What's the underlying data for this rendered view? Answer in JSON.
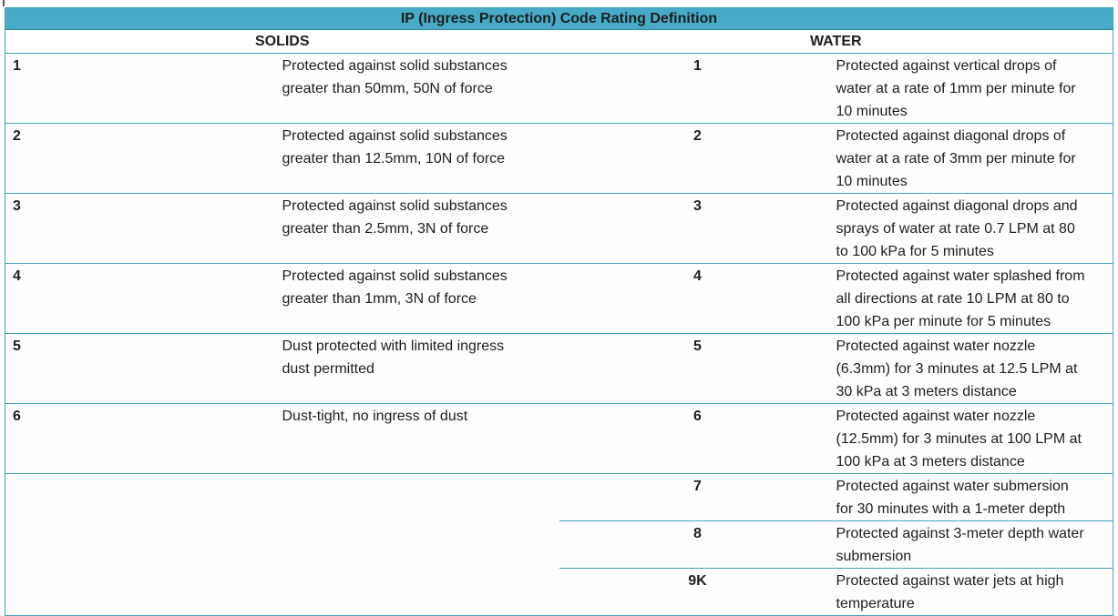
{
  "title": "IP (Ingress Protection) Code Rating Definition",
  "columns": {
    "solids_label": "SOLIDS",
    "water_label": "WATER"
  },
  "colors": {
    "header_band": "#47abc7",
    "border": "#44a0bb",
    "text": "#1d1d1d"
  },
  "rows_paired": [
    {
      "solid_code": "1",
      "solid_desc": "Protected against solid substances greater than 50mm, 50N of force",
      "water_code": "1",
      "water_desc": "Protected against vertical drops of water at a rate of 1mm per minute for 10 minutes"
    },
    {
      "solid_code": "2",
      "solid_desc": "Protected against solid substances greater than 12.5mm, 10N of force",
      "water_code": "2",
      "water_desc": "Protected against diagonal drops of water at a rate of 3mm per minute for 10 minutes"
    },
    {
      "solid_code": "3",
      "solid_desc": "Protected against solid substances greater than 2.5mm, 3N of force",
      "water_code": "3",
      "water_desc": "Protected against diagonal drops and sprays of water at rate 0.7 LPM at 80 to 100 kPa for 5 minutes"
    },
    {
      "solid_code": "4",
      "solid_desc": "Protected against solid substances greater than 1mm, 3N of force",
      "water_code": "4",
      "water_desc": "Protected against water splashed from all directions at rate 10 LPM at 80 to 100 kPa per minute for 5 minutes"
    },
    {
      "solid_code": "5",
      "solid_desc": "Dust protected with limited ingress dust permitted",
      "water_code": "5",
      "water_desc": "Protected against water nozzle (6.3mm) for 3 minutes at 12.5 LPM at 30 kPa at 3 meters distance"
    },
    {
      "solid_code": "6",
      "solid_desc": "Dust-tight, no ingress of dust",
      "water_code": "6",
      "water_desc": "Protected against water nozzle (12.5mm) for 3 minutes at 100 LPM at 100 kPa at 3 meters distance"
    }
  ],
  "rows_water_only": [
    {
      "water_code": "7",
      "water_desc": "Protected against water submersion for 30 minutes with a 1-meter depth"
    },
    {
      "water_code": "8",
      "water_desc": "Protected against 3-meter depth water submersion"
    },
    {
      "water_code": "9K",
      "water_desc": "Protected against water jets at high temperature"
    }
  ]
}
